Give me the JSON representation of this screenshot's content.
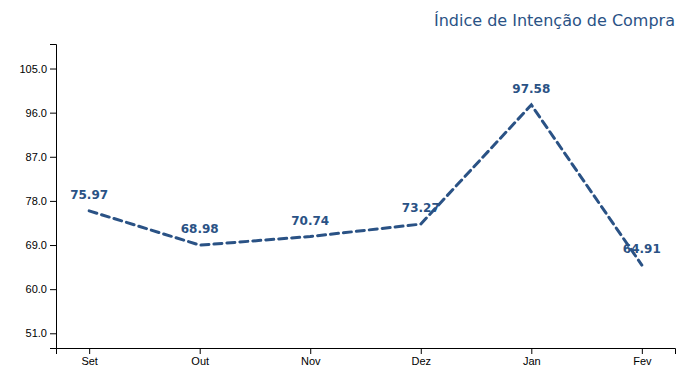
{
  "chart_data": {
    "type": "line",
    "title": "Índice de Intenção de Compra",
    "categories": [
      "Set",
      "Out",
      "Nov",
      "Dez",
      "Jan",
      "Fev"
    ],
    "values": [
      75.97,
      68.98,
      70.74,
      73.27,
      97.58,
      64.91
    ],
    "color": "#2A5285",
    "line_style": "dashed",
    "ylim": [
      48,
      110
    ],
    "yticks": [
      {
        "value": 51.0,
        "label": "51.0"
      },
      {
        "value": 60.0,
        "label": "60.0"
      },
      {
        "value": 69.0,
        "label": "69.0"
      },
      {
        "value": 78.0,
        "label": "78.0"
      },
      {
        "value": 87.0,
        "label": "87.0"
      },
      {
        "value": 96.0,
        "label": "96.0"
      },
      {
        "value": 105.0,
        "label": "105.0"
      }
    ],
    "grid": false,
    "data_labels": true
  }
}
